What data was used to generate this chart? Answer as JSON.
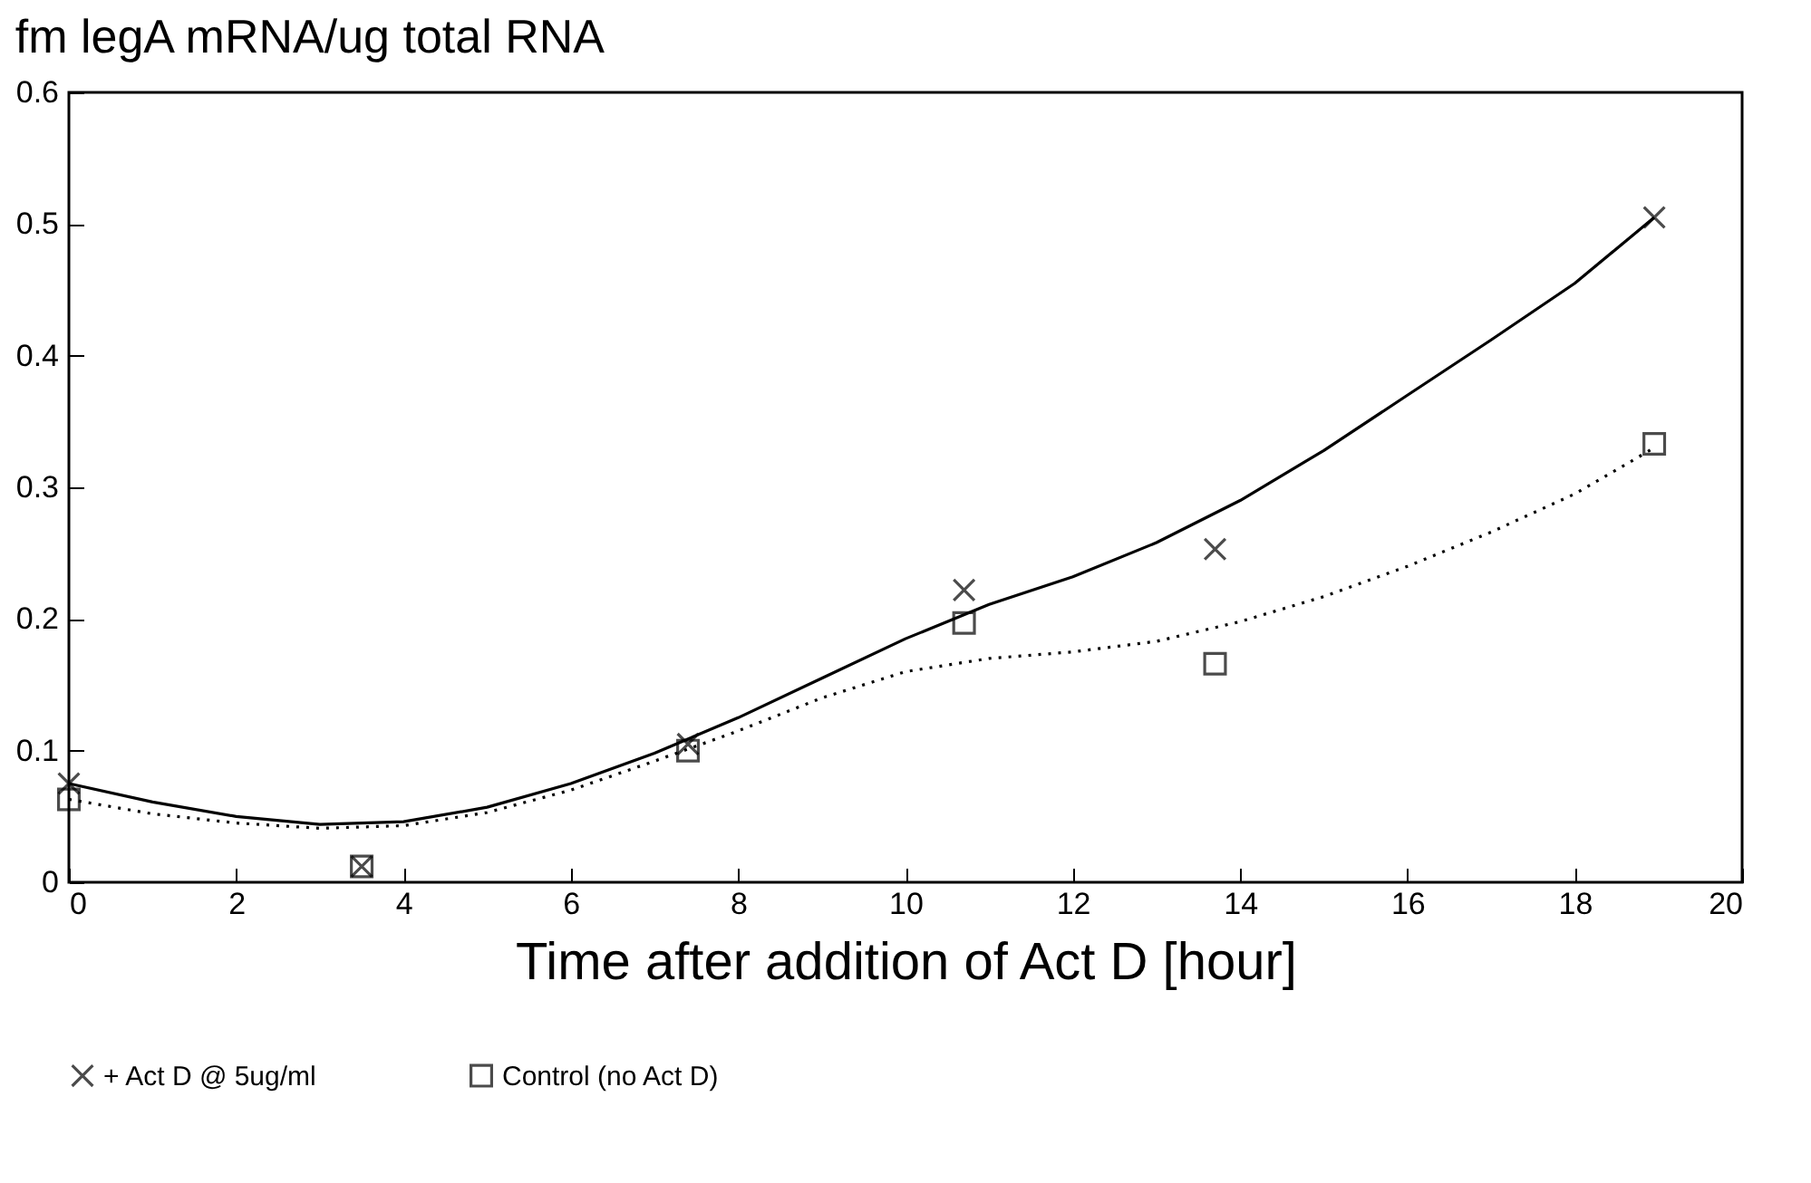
{
  "chart_data": {
    "type": "scatter",
    "title": "fm legA mRNA/ug total RNA",
    "xlabel": "Time after addition of Act D [hour]",
    "x": [
      0,
      3.5,
      7.4,
      10.7,
      13.7,
      18.95
    ],
    "series": [
      {
        "name": "+ Act D @ 5ug/ml",
        "marker": "cross",
        "color": "#000000",
        "values": [
          0.075,
          0.012,
          0.105,
          0.222,
          0.253,
          0.505
        ]
      },
      {
        "name": "Control (no Act D)",
        "marker": "square",
        "color": "#000000",
        "values": [
          0.063,
          0.012,
          0.1,
          0.197,
          0.166,
          0.333
        ]
      },
      {
        "type": "line",
        "line_style": "solid",
        "color": "#000000",
        "x": [
          0,
          1,
          2,
          3,
          4,
          5,
          6,
          7,
          8,
          9,
          10,
          11,
          12,
          13,
          14,
          15,
          16,
          17,
          18,
          18.95
        ],
        "values": [
          0.075,
          0.061,
          0.05,
          0.044,
          0.046,
          0.057,
          0.075,
          0.098,
          0.125,
          0.155,
          0.185,
          0.211,
          0.232,
          0.258,
          0.29,
          0.328,
          0.37,
          0.412,
          0.455,
          0.505
        ]
      },
      {
        "type": "line",
        "line_style": "dotted",
        "color": "#000000",
        "x": [
          0,
          1,
          2,
          3,
          4,
          5,
          6,
          7,
          8,
          9,
          10,
          11,
          12,
          13,
          14,
          15,
          16,
          17,
          18,
          18.95
        ],
        "values": [
          0.063,
          0.052,
          0.045,
          0.041,
          0.043,
          0.053,
          0.07,
          0.092,
          0.115,
          0.14,
          0.16,
          0.17,
          0.175,
          0.183,
          0.198,
          0.217,
          0.24,
          0.266,
          0.295,
          0.33
        ]
      }
    ],
    "xlim": [
      0,
      20
    ],
    "xticks": [
      0,
      2,
      4,
      6,
      8,
      10,
      12,
      14,
      16,
      18,
      20
    ],
    "ylim": [
      0,
      0.6
    ],
    "yticks": [
      0,
      0.1,
      0.2,
      0.3,
      0.4,
      0.5,
      0.6
    ],
    "grid": false,
    "legend": "bottom"
  }
}
